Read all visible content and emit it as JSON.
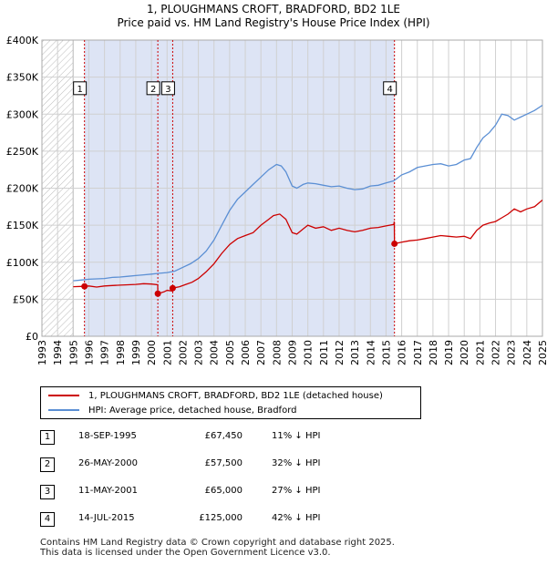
{
  "header": {
    "title_line1": "1, PLOUGHMANS CROFT, BRADFORD, BD2 1LE",
    "title_line2": "Price paid vs. HM Land Registry's House Price Index (HPI)"
  },
  "colors": {
    "property": "#cc0000",
    "hpi": "#5b8fd4",
    "shade": "#dde4f5",
    "grid": "#d0d0d0",
    "hatch": "#bbbbbb"
  },
  "chart_data": {
    "type": "line",
    "title": "Price paid vs. HM Land Registry's House Price Index (HPI)",
    "xlabel": "",
    "ylabel": "",
    "xlim": [
      1993,
      2025
    ],
    "ylim": [
      0,
      400000
    ],
    "y_ticks": [
      0,
      50000,
      100000,
      150000,
      200000,
      250000,
      300000,
      350000,
      400000
    ],
    "y_tick_labels": [
      "£0",
      "£50K",
      "£100K",
      "£150K",
      "£200K",
      "£250K",
      "£300K",
      "£350K",
      "£400K"
    ],
    "x_ticks": [
      1993,
      1994,
      1995,
      1996,
      1997,
      1998,
      1999,
      2000,
      2001,
      2002,
      2003,
      2004,
      2005,
      2006,
      2007,
      2008,
      2009,
      2010,
      2011,
      2012,
      2013,
      2014,
      2015,
      2016,
      2017,
      2018,
      2019,
      2020,
      2021,
      2022,
      2023,
      2024,
      2025
    ],
    "x_tick_labels": [
      "1993",
      "1994",
      "1995",
      "1996",
      "1997",
      "1998",
      "1999",
      "2000",
      "2001",
      "2002",
      "2003",
      "2004",
      "2005",
      "2006",
      "2007",
      "2008",
      "2009",
      "2010",
      "2011",
      "2012",
      "2013",
      "2014",
      "2015",
      "2016",
      "2017",
      "2018",
      "2019",
      "2020",
      "2021",
      "2022",
      "2023",
      "2024",
      "2025"
    ],
    "hatched_range": [
      1993,
      1995.0
    ],
    "shaded_range": [
      1995.72,
      2015.54
    ],
    "series": [
      {
        "name": "1, PLOUGHMANS CROFT, BRADFORD, BD2 1LE (detached house)",
        "color": "#cc0000",
        "x": [
          1995.0,
          1995.72,
          1996.0,
          1996.5,
          1997.0,
          1997.5,
          1998.0,
          1998.5,
          1999.0,
          1999.5,
          2000.0,
          2000.4,
          2000.41,
          2000.8,
          2001.0,
          2001.35,
          2001.36,
          2001.8,
          2002.2,
          2002.6,
          2003.0,
          2003.5,
          2004.0,
          2004.5,
          2005.0,
          2005.5,
          2006.0,
          2006.5,
          2007.0,
          2007.5,
          2007.8,
          2008.2,
          2008.6,
          2009.0,
          2009.3,
          2009.7,
          2010.0,
          2010.5,
          2011.0,
          2011.5,
          2012.0,
          2012.5,
          2013.0,
          2013.5,
          2014.0,
          2014.5,
          2015.0,
          2015.5,
          2015.53,
          2015.54,
          2016.0,
          2016.5,
          2017.0,
          2017.5,
          2018.0,
          2018.5,
          2019.0,
          2019.5,
          2020.0,
          2020.4,
          2020.8,
          2021.2,
          2021.6,
          2022.0,
          2022.4,
          2022.8,
          2023.2,
          2023.6,
          2024.0,
          2024.5,
          2025.0
        ],
        "values": [
          67000,
          67450,
          68000,
          66500,
          68000,
          68500,
          69000,
          69500,
          70000,
          71000,
          70500,
          69500,
          57500,
          60000,
          62000,
          61000,
          65000,
          67000,
          70000,
          73000,
          78000,
          87000,
          98000,
          112000,
          124000,
          132000,
          136000,
          140000,
          150000,
          158000,
          163000,
          165000,
          158000,
          140000,
          138000,
          145000,
          150000,
          146000,
          148000,
          143000,
          146000,
          143000,
          141000,
          143000,
          146000,
          147000,
          149000,
          151000,
          155000,
          125000,
          127000,
          129000,
          130000,
          132000,
          134000,
          136000,
          135000,
          134000,
          135000,
          132000,
          143000,
          150000,
          153000,
          155000,
          160000,
          165000,
          172000,
          168000,
          172000,
          175000,
          184000
        ]
      },
      {
        "name": "HPI: Average price, detached house, Bradford",
        "color": "#5b8fd4",
        "x": [
          1995.0,
          1995.5,
          1996.0,
          1996.5,
          1997.0,
          1997.5,
          1998.0,
          1998.5,
          1999.0,
          1999.5,
          2000.0,
          2000.5,
          2001.0,
          2001.5,
          2002.0,
          2002.5,
          2003.0,
          2003.5,
          2004.0,
          2004.5,
          2005.0,
          2005.5,
          2006.0,
          2006.5,
          2007.0,
          2007.5,
          2008.0,
          2008.3,
          2008.6,
          2009.0,
          2009.3,
          2009.7,
          2010.0,
          2010.5,
          2011.0,
          2011.5,
          2012.0,
          2012.5,
          2013.0,
          2013.5,
          2014.0,
          2014.5,
          2015.0,
          2015.5,
          2016.0,
          2016.5,
          2017.0,
          2017.5,
          2018.0,
          2018.5,
          2019.0,
          2019.5,
          2020.0,
          2020.4,
          2020.8,
          2021.2,
          2021.6,
          2022.0,
          2022.4,
          2022.8,
          2023.2,
          2023.6,
          2024.0,
          2024.5,
          2025.0
        ],
        "values": [
          75000,
          76000,
          77000,
          77500,
          78000,
          79500,
          80000,
          81000,
          82000,
          83000,
          84000,
          85000,
          86000,
          88000,
          93000,
          98000,
          105000,
          115000,
          130000,
          150000,
          170000,
          185000,
          195000,
          205000,
          215000,
          225000,
          232000,
          230000,
          222000,
          203000,
          200000,
          205000,
          207000,
          206000,
          204000,
          202000,
          203000,
          200000,
          198000,
          199000,
          203000,
          204000,
          207000,
          210000,
          218000,
          222000,
          228000,
          230000,
          232000,
          233000,
          230000,
          232000,
          238000,
          240000,
          255000,
          268000,
          275000,
          285000,
          300000,
          298000,
          292000,
          296000,
          300000,
          305000,
          312000
        ]
      }
    ],
    "sale_markers": [
      {
        "label": "1",
        "x": 1995.72,
        "y": 67450,
        "box_y": 335000
      },
      {
        "label": "2",
        "x": 2000.41,
        "y": 57500,
        "box_y": 335000
      },
      {
        "label": "3",
        "x": 2001.36,
        "y": 65000,
        "box_y": 335000
      },
      {
        "label": "4",
        "x": 2015.54,
        "y": 125000,
        "box_y": 335000
      }
    ]
  },
  "legend": {
    "property_label": "1, PLOUGHMANS CROFT, BRADFORD, BD2 1LE (detached house)",
    "hpi_label": "HPI: Average price, detached house, Bradford"
  },
  "sales": [
    {
      "num": "1",
      "date": "18-SEP-1995",
      "price": "£67,450",
      "hpi": "11% ↓ HPI"
    },
    {
      "num": "2",
      "date": "26-MAY-2000",
      "price": "£57,500",
      "hpi": "32% ↓ HPI"
    },
    {
      "num": "3",
      "date": "11-MAY-2001",
      "price": "£65,000",
      "hpi": "27% ↓ HPI"
    },
    {
      "num": "4",
      "date": "14-JUL-2015",
      "price": "£125,000",
      "hpi": "42% ↓ HPI"
    }
  ],
  "footer": {
    "line1": "Contains HM Land Registry data © Crown copyright and database right 2025.",
    "line2": "This data is licensed under the Open Government Licence v3.0."
  }
}
